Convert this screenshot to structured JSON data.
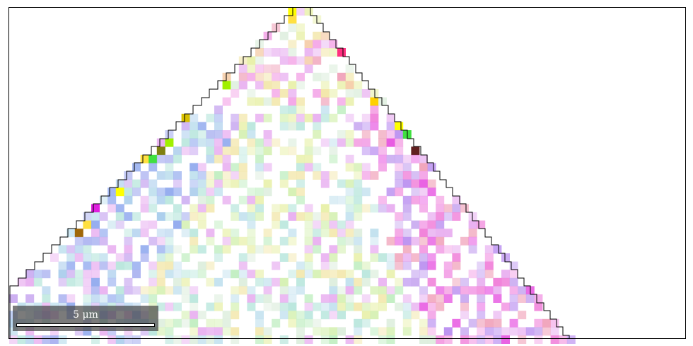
{
  "figure": {
    "type": "EBSD crystal orientation map (inverse pole figure colouring) of a triangular grain",
    "scalebar": {
      "value": "5",
      "unit": "μm",
      "label": "5 μm"
    },
    "palette_hex": [
      "#f3a0e6",
      "#e8aef0",
      "#c8a8f0",
      "#a8b0f0",
      "#a8ccec",
      "#b8e6dc",
      "#bfeec0",
      "#d4f0b0",
      "#e8f0a8",
      "#f2e6a8",
      "#f4c8a0",
      "#f0a0b8",
      "#f07cd8",
      "#e650e0",
      "#b88cf0",
      "#8fa8ee",
      "#c0e0ee",
      "#ddeedd"
    ],
    "edge_colors_hex": [
      "#ffd000",
      "#f0a020",
      "#ff8030",
      "#e0a000",
      "#a06808",
      "#602020",
      "#e02060",
      "#c01850",
      "#d8c000",
      "#ffe040",
      "#ffff00",
      "#40e040",
      "#7f8010",
      "#ff3080",
      "#e020e0",
      "#804020",
      "#a0f000"
    ],
    "border_color_hex": "#000000"
  }
}
